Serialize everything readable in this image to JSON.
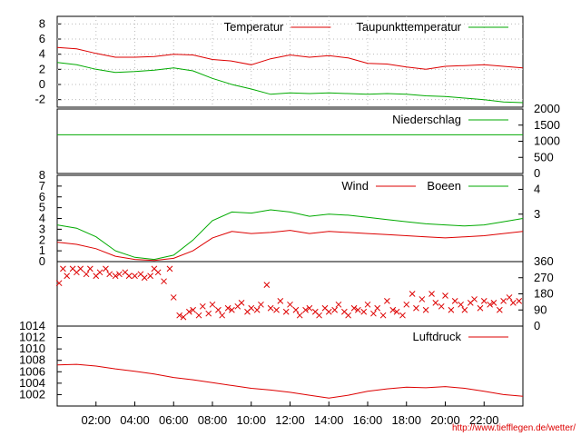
{
  "chart_data": [
    {
      "type": "line",
      "ylim": [
        -3,
        9
      ],
      "yticks": [
        "8",
        "6",
        "4",
        "2",
        "0",
        "-2"
      ],
      "ytick_values": [
        8,
        6,
        4,
        2,
        0,
        -2
      ],
      "grid": true,
      "legend_placement": "top-right",
      "series": [
        {
          "name": "Temperatur",
          "color": "#dd0000",
          "x": [
            0,
            1,
            2,
            3,
            4,
            5,
            6,
            7,
            8,
            9,
            10,
            11,
            12,
            13,
            14,
            15,
            16,
            17,
            18,
            19,
            20,
            21,
            22,
            23,
            24
          ],
          "values": [
            4.9,
            4.7,
            4.1,
            3.6,
            3.6,
            3.7,
            4.0,
            3.9,
            3.3,
            3.1,
            2.6,
            3.4,
            3.9,
            3.6,
            3.8,
            3.5,
            2.8,
            2.7,
            2.3,
            2.0,
            2.4,
            2.5,
            2.6,
            2.4,
            2.2
          ]
        },
        {
          "name": "Taupunkttemperatur",
          "color": "#00aa00",
          "x": [
            0,
            1,
            2,
            3,
            4,
            5,
            6,
            7,
            8,
            9,
            10,
            11,
            12,
            13,
            14,
            15,
            16,
            17,
            18,
            19,
            20,
            21,
            22,
            23,
            24
          ],
          "values": [
            2.9,
            2.6,
            2.0,
            1.6,
            1.7,
            1.9,
            2.2,
            1.8,
            0.8,
            0.0,
            -0.6,
            -1.3,
            -1.1,
            -1.2,
            -1.1,
            -1.2,
            -1.3,
            -1.2,
            -1.3,
            -1.5,
            -1.6,
            -1.8,
            -2.0,
            -2.3,
            -2.4
          ]
        }
      ]
    },
    {
      "type": "line",
      "ylim": [
        0,
        2000
      ],
      "yticks": [
        "2000",
        "1500",
        "1000",
        "500",
        "0"
      ],
      "ytick_values": [
        2000,
        1500,
        1000,
        500,
        0
      ],
      "y_axis_side": "right",
      "legend_placement": "top-right",
      "series": [
        {
          "name": "Niederschlag",
          "color": "#00aa00",
          "x": [
            0,
            24
          ],
          "values": [
            1200,
            1200
          ]
        }
      ]
    },
    {
      "type": "line",
      "ylim": [
        0,
        8
      ],
      "yticks": [
        "8",
        "7",
        "6",
        "5",
        "4",
        "3",
        "2",
        "1",
        "0"
      ],
      "ytick_values": [
        8,
        7,
        6,
        5,
        4,
        3,
        2,
        1,
        0
      ],
      "y2ticks": [
        "4",
        "3"
      ],
      "y2tick_values": [
        6.7,
        4.4
      ],
      "legend_placement": "top-right",
      "series": [
        {
          "name": "Wind",
          "color": "#dd0000",
          "x": [
            0,
            1,
            2,
            3,
            4,
            5,
            6,
            7,
            8,
            9,
            10,
            11,
            12,
            13,
            14,
            15,
            16,
            17,
            18,
            19,
            20,
            21,
            22,
            23,
            24
          ],
          "values": [
            1.8,
            1.6,
            1.2,
            0.5,
            0.2,
            0.1,
            0.3,
            1.0,
            2.2,
            2.8,
            2.6,
            2.7,
            2.9,
            2.6,
            2.8,
            2.7,
            2.6,
            2.5,
            2.4,
            2.3,
            2.2,
            2.3,
            2.4,
            2.6,
            2.8
          ]
        },
        {
          "name": "Boeen",
          "color": "#00aa00",
          "x": [
            0,
            1,
            2,
            3,
            4,
            5,
            6,
            7,
            8,
            9,
            10,
            11,
            12,
            13,
            14,
            15,
            16,
            17,
            18,
            19,
            20,
            21,
            22,
            23,
            24
          ],
          "values": [
            3.4,
            3.1,
            2.3,
            1.0,
            0.4,
            0.2,
            0.6,
            2.0,
            3.8,
            4.6,
            4.5,
            4.8,
            4.6,
            4.2,
            4.4,
            4.3,
            4.1,
            3.9,
            3.7,
            3.5,
            3.4,
            3.3,
            3.4,
            3.7,
            4.0
          ]
        }
      ]
    },
    {
      "type": "scatter",
      "ylim": [
        0,
        360
      ],
      "yticks": [
        "360",
        "270",
        "180",
        "90",
        "0"
      ],
      "ytick_values": [
        360,
        270,
        180,
        90,
        0
      ],
      "y_axis_side": "right",
      "marker": "x",
      "color": "#dd0000",
      "series": [
        {
          "name": "",
          "x": [
            0.1,
            0.3,
            0.5,
            0.8,
            1.0,
            1.2,
            1.5,
            1.7,
            2.0,
            2.2,
            2.5,
            2.7,
            3.0,
            3.2,
            3.5,
            3.7,
            4.0,
            4.3,
            4.5,
            4.8,
            5.0,
            5.2,
            5.5,
            5.8,
            6.0,
            6.3,
            6.5,
            6.8,
            7.0,
            7.3,
            7.5,
            7.8,
            8.0,
            8.3,
            8.5,
            8.8,
            9.0,
            9.3,
            9.5,
            9.8,
            10.0,
            10.3,
            10.5,
            10.8,
            11.0,
            11.3,
            11.5,
            11.8,
            12.0,
            12.3,
            12.5,
            12.8,
            13.0,
            13.3,
            13.5,
            13.8,
            14.0,
            14.3,
            14.5,
            14.8,
            15.0,
            15.3,
            15.5,
            15.8,
            16.0,
            16.3,
            16.5,
            16.8,
            17.0,
            17.3,
            17.5,
            17.8,
            18.0,
            18.3,
            18.5,
            18.8,
            19.0,
            19.3,
            19.5,
            19.8,
            20.0,
            20.3,
            20.5,
            20.8,
            21.0,
            21.3,
            21.5,
            21.8,
            22.0,
            22.3,
            22.5,
            22.8,
            23.0,
            23.3,
            23.5,
            23.8
          ],
          "values": [
            240,
            320,
            280,
            320,
            300,
            320,
            290,
            320,
            280,
            300,
            320,
            290,
            280,
            290,
            300,
            280,
            280,
            290,
            270,
            280,
            320,
            300,
            250,
            320,
            160,
            60,
            50,
            80,
            90,
            60,
            110,
            70,
            120,
            90,
            60,
            100,
            90,
            110,
            130,
            80,
            100,
            90,
            120,
            230,
            100,
            90,
            140,
            80,
            120,
            90,
            60,
            90,
            100,
            80,
            60,
            100,
            80,
            90,
            120,
            80,
            60,
            100,
            90,
            80,
            120,
            70,
            100,
            60,
            140,
            90,
            80,
            60,
            120,
            180,
            100,
            150,
            90,
            180,
            130,
            110,
            170,
            90,
            140,
            120,
            90,
            130,
            150,
            100,
            140,
            120,
            130,
            90,
            140,
            160,
            130,
            140
          ]
        }
      ]
    },
    {
      "type": "line",
      "ylim": [
        1000,
        1014
      ],
      "yticks": [
        "1014",
        "1012",
        "1010",
        "1008",
        "1006",
        "1004",
        "1002"
      ],
      "ytick_values": [
        1014,
        1012,
        1010,
        1008,
        1006,
        1004,
        1002
      ],
      "legend_placement": "top-right",
      "xticks": [
        "02:00",
        "04:00",
        "06:00",
        "08:00",
        "10:00",
        "12:00",
        "14:00",
        "16:00",
        "18:00",
        "20:00",
        "22:00"
      ],
      "xtick_values": [
        2,
        4,
        6,
        8,
        10,
        12,
        14,
        16,
        18,
        20,
        22
      ],
      "series": [
        {
          "name": "Luftdruck",
          "color": "#dd0000",
          "x": [
            0,
            1,
            2,
            3,
            4,
            5,
            6,
            7,
            8,
            9,
            10,
            11,
            12,
            13,
            14,
            15,
            16,
            17,
            18,
            19,
            20,
            21,
            22,
            23,
            24
          ],
          "values": [
            1007.2,
            1007.3,
            1007.0,
            1006.5,
            1006.1,
            1005.6,
            1005.0,
            1004.6,
            1004.1,
            1003.6,
            1003.1,
            1002.8,
            1002.4,
            1001.9,
            1001.4,
            1001.9,
            1002.6,
            1003.0,
            1003.3,
            1003.2,
            1003.4,
            1003.1,
            1002.6,
            1002.0,
            1001.7
          ]
        }
      ]
    }
  ],
  "footer": {
    "url": "http://www.tiefflegen.de/wetter/"
  }
}
